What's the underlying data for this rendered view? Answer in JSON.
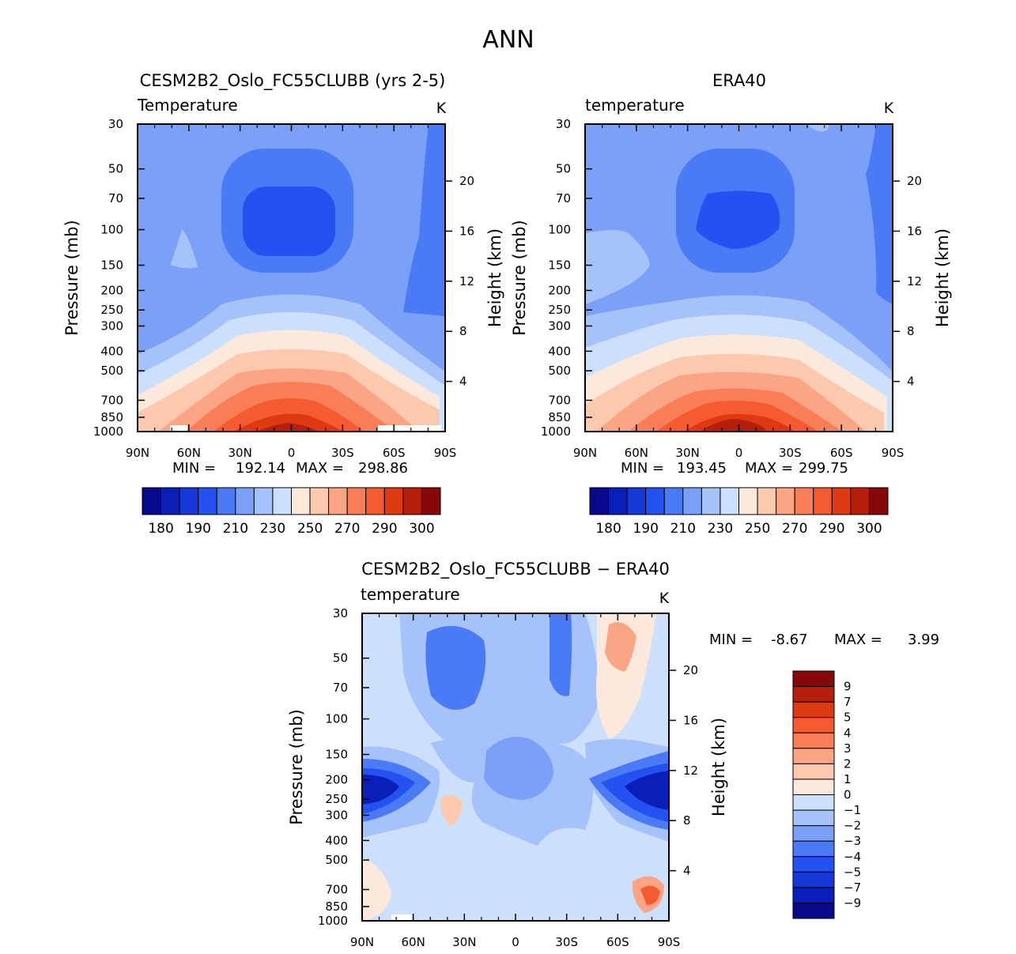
{
  "figure_title": "ANN",
  "colors": {
    "abs_scale": [
      "#08088c",
      "#0a1fb8",
      "#1638d9",
      "#2452f0",
      "#4a7af5",
      "#7aa0f7",
      "#a6c2fa",
      "#cde0fb",
      "#fde9dc",
      "#fcc9ae",
      "#fba584",
      "#f97e57",
      "#f55b2e",
      "#de3a11",
      "#b51f0c",
      "#870808"
    ],
    "diff_scale": [
      "#08088c",
      "#0a1fb8",
      "#1638d9",
      "#2452f0",
      "#4a7af5",
      "#7aa0f7",
      "#a6c2fa",
      "#cde0fb",
      "#fde9dc",
      "#fcc9ae",
      "#fba584",
      "#f97e57",
      "#f55b2e",
      "#de3a11",
      "#b51f0c",
      "#870808"
    ]
  },
  "chart_data": [
    {
      "type": "heatmap",
      "panel": "model",
      "title": "CESM2B2_Oslo_FC55CLUBB (yrs 2-5)",
      "variable": "Temperature",
      "units": "K",
      "xlabel": "",
      "ylabel": "Pressure (mb)",
      "ylabel_right": "Height (km)",
      "x_ticks": [
        "90N",
        "60N",
        "30N",
        "0",
        "30S",
        "60S",
        "90S"
      ],
      "y_ticks": [
        "30",
        "50",
        "70",
        "100",
        "150",
        "200",
        "250",
        "300",
        "400",
        "500",
        "700",
        "850",
        "1000"
      ],
      "y2_ticks": [
        "20",
        "16",
        "12",
        "8",
        "4"
      ],
      "min_label": "MIN =",
      "min_value": "192.14",
      "max_label": "MAX =",
      "max_value": "298.86",
      "colorbar_labels": [
        "180",
        "190",
        "210",
        "230",
        "250",
        "270",
        "290",
        "300"
      ],
      "contour_levels": [
        180,
        185,
        190,
        200,
        210,
        220,
        230,
        240,
        250,
        260,
        270,
        280,
        290,
        295,
        300
      ]
    },
    {
      "type": "heatmap",
      "panel": "obs",
      "title": "ERA40",
      "variable": "temperature",
      "units": "K",
      "xlabel": "",
      "ylabel": "Pressure (mb)",
      "ylabel_right": "Height (km)",
      "x_ticks": [
        "90N",
        "60N",
        "30N",
        "0",
        "30S",
        "60S",
        "90S"
      ],
      "y_ticks": [
        "30",
        "50",
        "70",
        "100",
        "150",
        "200",
        "250",
        "300",
        "400",
        "500",
        "700",
        "850",
        "1000"
      ],
      "y2_ticks": [
        "20",
        "16",
        "12",
        "8",
        "4"
      ],
      "min_label": "MIN =",
      "min_value": "193.45",
      "max_label": "MAX =",
      "max_value": "299.75",
      "colorbar_labels": [
        "180",
        "190",
        "210",
        "230",
        "250",
        "270",
        "290",
        "300"
      ],
      "contour_levels": [
        180,
        185,
        190,
        200,
        210,
        220,
        230,
        240,
        250,
        260,
        270,
        280,
        290,
        295,
        300
      ]
    },
    {
      "type": "heatmap",
      "panel": "difference",
      "title": "CESM2B2_Oslo_FC55CLUBB − ERA40",
      "variable": "temperature",
      "units": "K",
      "xlabel": "",
      "ylabel": "Pressure (mb)",
      "ylabel_right": "Height (km)",
      "x_ticks": [
        "90N",
        "60N",
        "30N",
        "0",
        "30S",
        "60S",
        "90S"
      ],
      "y_ticks": [
        "30",
        "50",
        "70",
        "100",
        "150",
        "200",
        "250",
        "300",
        "400",
        "500",
        "700",
        "850",
        "1000"
      ],
      "y2_ticks": [
        "20",
        "16",
        "12",
        "8",
        "4"
      ],
      "min_label": "MIN =",
      "min_value": "-8.67",
      "max_label": "MAX =",
      "max_value": "3.99",
      "colorbar_labels": [
        "9",
        "7",
        "5",
        "4",
        "3",
        "2",
        "1",
        "0",
        "−1",
        "−2",
        "−3",
        "−4",
        "−5",
        "−7",
        "−9"
      ],
      "contour_levels": [
        -9,
        -7,
        -5,
        -4,
        -3,
        -2,
        -1,
        0,
        1,
        2,
        3,
        4,
        5,
        7,
        9
      ]
    }
  ]
}
